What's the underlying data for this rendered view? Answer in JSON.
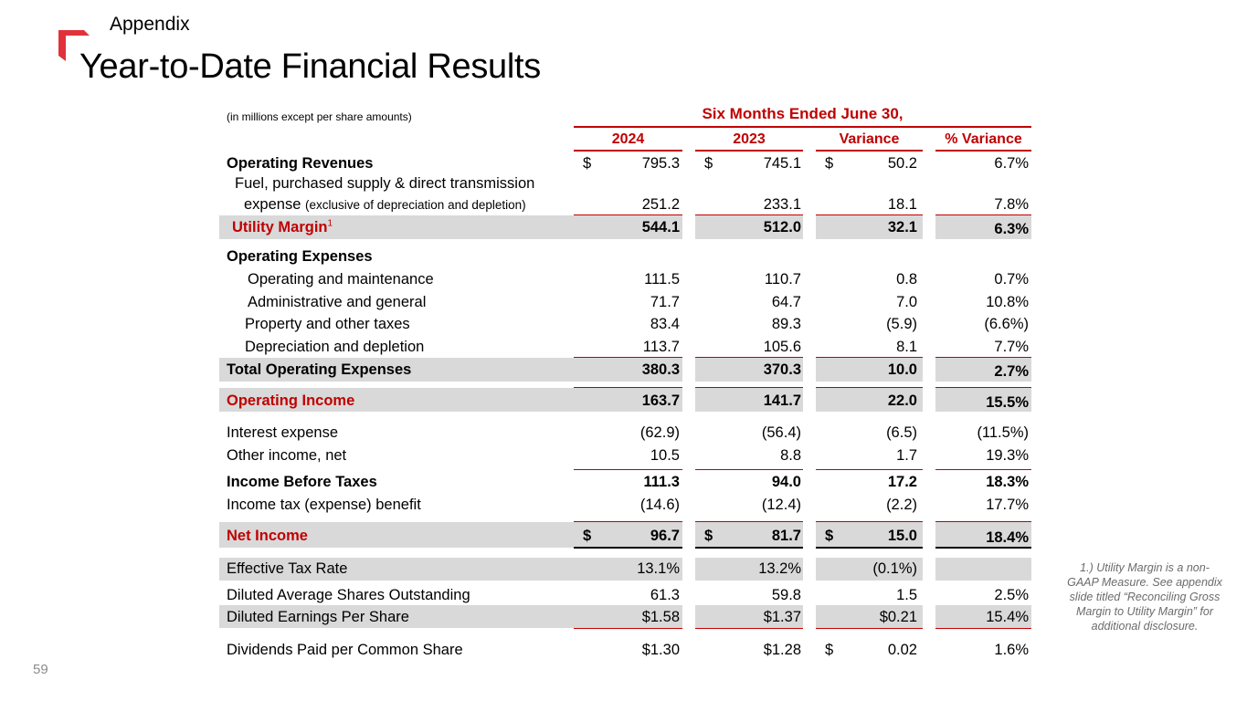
{
  "header": {
    "section": "Appendix",
    "title": "Year-to-Date Financial Results",
    "page_number": "59"
  },
  "table": {
    "units_note": "(in millions except per share amounts)",
    "period_header": "Six Months Ended June 30,",
    "columns": [
      "2024",
      "2023",
      "Variance",
      "% Variance"
    ],
    "rows": {
      "operating_revenues": {
        "label": "Operating Revenues",
        "c1": "795.3",
        "c2": "745.1",
        "c3": "50.2",
        "c4": "6.7%"
      },
      "fuel": {
        "label_line1": "Fuel, purchased supply & direct transmission",
        "label_line2": "expense",
        "label_note": "(exclusive of depreciation and depletion)",
        "c1": "251.2",
        "c2": "233.1",
        "c3": "18.1",
        "c4": "7.8%"
      },
      "utility_margin": {
        "label": "Utility Margin",
        "sup": "1",
        "c1": "544.1",
        "c2": "512.0",
        "c3": "32.1",
        "c4": "6.3%"
      },
      "operating_expenses": {
        "label": "Operating Expenses"
      },
      "om": {
        "label": "Operating and maintenance",
        "c1": "111.5",
        "c2": "110.7",
        "c3": "0.8",
        "c4": "0.7%"
      },
      "ag": {
        "label": "Administrative and general",
        "c1": "71.7",
        "c2": "64.7",
        "c3": "7.0",
        "c4": "10.8%"
      },
      "taxes": {
        "label": "Property and other taxes",
        "c1": "83.4",
        "c2": "89.3",
        "c3": "(5.9)",
        "c4": "(6.6%)"
      },
      "depr": {
        "label": "Depreciation and depletion",
        "c1": "113.7",
        "c2": "105.6",
        "c3": "8.1",
        "c4": "7.7%"
      },
      "total_opex": {
        "label": "Total Operating Expenses",
        "c1": "380.3",
        "c2": "370.3",
        "c3": "10.0",
        "c4": "2.7%"
      },
      "op_income": {
        "label": "Operating Income",
        "c1": "163.7",
        "c2": "141.7",
        "c3": "22.0",
        "c4": "15.5%"
      },
      "interest": {
        "label": "Interest expense",
        "c1": "(62.9)",
        "c2": "(56.4)",
        "c3": "(6.5)",
        "c4": "(11.5%)"
      },
      "other": {
        "label": "Other income, net",
        "c1": "10.5",
        "c2": "8.8",
        "c3": "1.7",
        "c4": "19.3%"
      },
      "ibt": {
        "label": "Income Before Taxes",
        "c1": "111.3",
        "c2": "94.0",
        "c3": "17.2",
        "c4": "18.3%"
      },
      "tax": {
        "label": "Income tax (expense) benefit",
        "c1": "(14.6)",
        "c2": "(12.4)",
        "c3": "(2.2)",
        "c4": "17.7%"
      },
      "net_income": {
        "label": "Net Income",
        "c1": "96.7",
        "c2": "81.7",
        "c3": "15.0",
        "c4": "18.4%"
      },
      "etr": {
        "label": "Effective Tax Rate",
        "c1": "13.1%",
        "c2": "13.2%",
        "c3": "(0.1%)",
        "c4": ""
      },
      "shares": {
        "label": "Diluted Average Shares Outstanding",
        "c1": "61.3",
        "c2": "59.8",
        "c3": "1.5",
        "c4": "2.5%"
      },
      "eps": {
        "label": "Diluted Earnings Per Share",
        "c1": "$1.58",
        "c2": "$1.37",
        "c3": "$0.21",
        "c4": "15.4%"
      },
      "dividends": {
        "label": "Dividends Paid per Common Share",
        "c1": "$1.30",
        "c2": "$1.28",
        "c3": "0.02",
        "c4": "1.6%"
      }
    },
    "currency_symbol": "$"
  },
  "footnote": "1.) Utility Margin is a non-GAAP Measure. See appendix slide titled “Reconciling Gross Margin to Utility Margin” for additional disclosure.",
  "colors": {
    "accent": "#c00000",
    "band": "#d9d9d9"
  }
}
